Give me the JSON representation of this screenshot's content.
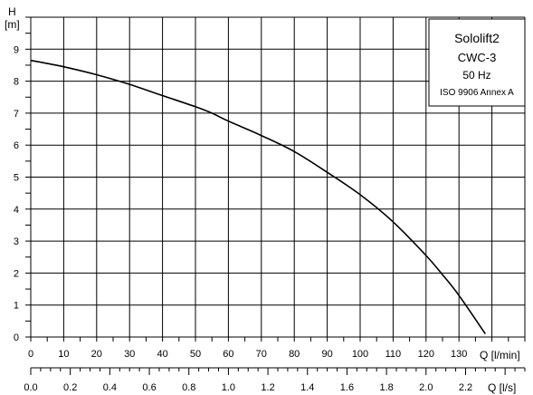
{
  "chart_data": {
    "type": "line",
    "y_axis": {
      "label_top": "H",
      "unit": "[m]",
      "ylim": [
        0,
        10
      ],
      "ticks": [
        "0",
        "1",
        "2",
        "3",
        "4",
        "5",
        "6",
        "7",
        "8",
        "9"
      ],
      "tick_values": [
        0,
        1,
        2,
        3,
        4,
        5,
        6,
        7,
        8,
        9
      ]
    },
    "x_axis": {
      "label": "Q [l/min]",
      "xlim": [
        0,
        150
      ],
      "ticks": [
        "0",
        "10",
        "20",
        "30",
        "40",
        "50",
        "60",
        "70",
        "80",
        "90",
        "100",
        "110",
        "120",
        "130"
      ],
      "tick_values": [
        0,
        10,
        20,
        30,
        40,
        50,
        60,
        70,
        80,
        90,
        100,
        110,
        120,
        130
      ]
    },
    "x_axis_secondary": {
      "label": "Q [l/s]",
      "xlim": [
        0,
        2.5
      ],
      "ticks": [
        "0.0",
        "0.2",
        "0.4",
        "0.6",
        "0.8",
        "1.0",
        "1.2",
        "1.4",
        "1.6",
        "1.8",
        "2.0",
        "2.2"
      ],
      "tick_values": [
        0.0,
        0.2,
        0.4,
        0.6,
        0.8,
        1.0,
        1.2,
        1.4,
        1.6,
        1.8,
        2.0,
        2.2
      ]
    },
    "legend_box": {
      "placement": "top-right",
      "lines": [
        "Sololift2",
        "CWC-3",
        "50 Hz",
        "ISO 9906 Annex A"
      ]
    },
    "grid": true,
    "series": [
      {
        "x": [
          0,
          10,
          20,
          30,
          40,
          50,
          55,
          60,
          70,
          80,
          90,
          100,
          110,
          120,
          125,
          130,
          138
        ],
        "y": [
          8.65,
          8.45,
          8.2,
          7.9,
          7.55,
          7.2,
          7.0,
          6.75,
          6.3,
          5.8,
          5.15,
          4.45,
          3.6,
          2.55,
          1.95,
          1.3,
          0.1
        ]
      }
    ],
    "colors": {
      "line": "#000000",
      "grid": "#000000",
      "background": "#ffffff"
    }
  }
}
